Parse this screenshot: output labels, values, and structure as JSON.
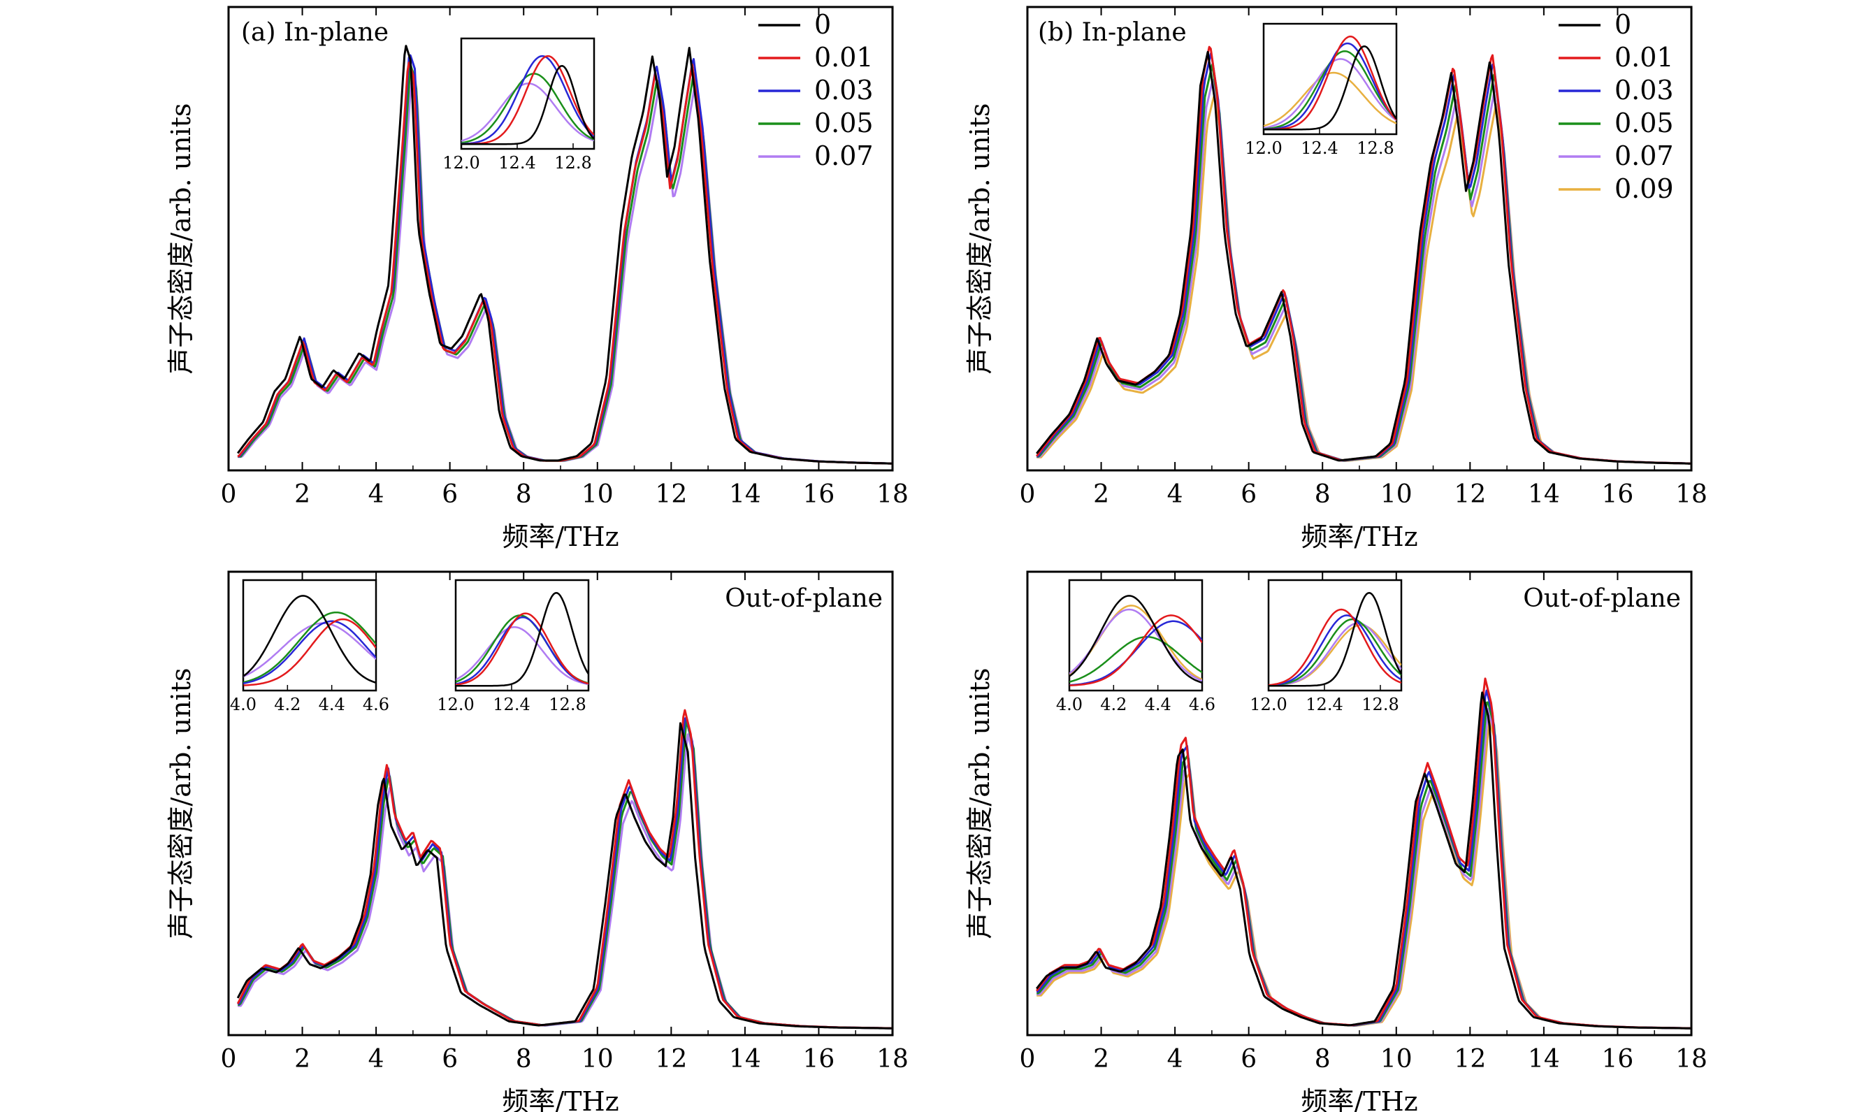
{
  "series_colors": {
    "0": "#000000",
    "0.01": "#e31a1c",
    "0.03": "#2727d6",
    "0.05": "#1a8f1a",
    "0.07": "#b07cf2",
    "0.09": "#e8b040"
  },
  "chart_data": [
    {
      "panel": "a",
      "type": "line",
      "title": "(a) In-plane",
      "xlabel": "频率/THz",
      "ylabel": "声子态密度/arb. units",
      "xlim": [
        0,
        18
      ],
      "xticks": [
        "0",
        "2",
        "4",
        "6",
        "8",
        "10",
        "12",
        "14",
        "16",
        "18"
      ],
      "legend": {
        "position": "top-right",
        "entries": [
          "0",
          "0.01",
          "0.03",
          "0.05",
          "0.07"
        ]
      },
      "base_curve": [
        [
          0.25,
          0.02
        ],
        [
          0.6,
          0.06
        ],
        [
          1.0,
          0.1
        ],
        [
          1.3,
          0.17
        ],
        [
          1.6,
          0.2
        ],
        [
          2.0,
          0.3
        ],
        [
          2.3,
          0.2
        ],
        [
          2.6,
          0.18
        ],
        [
          2.9,
          0.22
        ],
        [
          3.2,
          0.2
        ],
        [
          3.6,
          0.26
        ],
        [
          3.9,
          0.24
        ],
        [
          4.1,
          0.32
        ],
        [
          4.4,
          0.42
        ],
        [
          4.7,
          0.78
        ],
        [
          4.85,
          0.98
        ],
        [
          5.0,
          0.94
        ],
        [
          5.2,
          0.55
        ],
        [
          5.5,
          0.4
        ],
        [
          5.8,
          0.28
        ],
        [
          6.1,
          0.27
        ],
        [
          6.4,
          0.3
        ],
        [
          6.7,
          0.36
        ],
        [
          6.9,
          0.4
        ],
        [
          7.1,
          0.34
        ],
        [
          7.4,
          0.12
        ],
        [
          7.7,
          0.04
        ],
        [
          8.0,
          0.02
        ],
        [
          8.5,
          0.01
        ],
        [
          9.0,
          0.01
        ],
        [
          9.5,
          0.02
        ],
        [
          9.9,
          0.05
        ],
        [
          10.3,
          0.2
        ],
        [
          10.7,
          0.56
        ],
        [
          11.0,
          0.72
        ],
        [
          11.3,
          0.82
        ],
        [
          11.55,
          0.95
        ],
        [
          11.75,
          0.85
        ],
        [
          11.95,
          0.67
        ],
        [
          12.15,
          0.74
        ],
        [
          12.35,
          0.86
        ],
        [
          12.55,
          0.97
        ],
        [
          12.8,
          0.8
        ],
        [
          13.1,
          0.48
        ],
        [
          13.5,
          0.18
        ],
        [
          13.8,
          0.06
        ],
        [
          14.2,
          0.03
        ],
        [
          15.0,
          0.015
        ],
        [
          16.0,
          0.008
        ],
        [
          17.0,
          0.005
        ],
        [
          18.0,
          0.003
        ]
      ],
      "shifts": {
        "0": -0.06,
        "0.01": 0.02,
        "0.03": 0.05,
        "0.05": 0.08,
        "0.07": 0.11
      },
      "scales": {
        "0": 1.0,
        "0.01": 0.96,
        "0.03": 0.98,
        "0.05": 0.95,
        "0.07": 0.92
      },
      "insets": [
        {
          "xticks": [
            "12.0",
            "12.4",
            "12.8"
          ],
          "xlim": [
            12.0,
            12.95
          ],
          "peaks": {
            "0": [
              12.72,
              0.8,
              0.14
            ],
            "0.01": [
              12.62,
              0.9,
              0.22
            ],
            "0.03": [
              12.58,
              0.9,
              0.24
            ],
            "0.05": [
              12.52,
              0.72,
              0.26
            ],
            "0.07": [
              12.48,
              0.62,
              0.28
            ]
          }
        }
      ]
    },
    {
      "panel": "b",
      "type": "line",
      "title": "(b) In-plane",
      "xlabel": "频率/THz",
      "ylabel": "声子态密度/arb. units",
      "xlim": [
        0,
        18
      ],
      "xticks": [
        "0",
        "2",
        "4",
        "6",
        "8",
        "10",
        "12",
        "14",
        "16",
        "18"
      ],
      "legend": {
        "position": "top-right",
        "entries": [
          "0",
          "0.01",
          "0.03",
          "0.05",
          "0.07",
          "0.09"
        ]
      },
      "base_curve": [
        [
          0.25,
          0.02
        ],
        [
          0.7,
          0.07
        ],
        [
          1.2,
          0.12
        ],
        [
          1.6,
          0.2
        ],
        [
          1.95,
          0.3
        ],
        [
          2.2,
          0.24
        ],
        [
          2.5,
          0.2
        ],
        [
          3.0,
          0.19
        ],
        [
          3.5,
          0.22
        ],
        [
          3.9,
          0.26
        ],
        [
          4.2,
          0.36
        ],
        [
          4.5,
          0.56
        ],
        [
          4.75,
          0.9
        ],
        [
          4.95,
          0.98
        ],
        [
          5.15,
          0.86
        ],
        [
          5.4,
          0.55
        ],
        [
          5.7,
          0.36
        ],
        [
          6.0,
          0.28
        ],
        [
          6.4,
          0.3
        ],
        [
          6.7,
          0.36
        ],
        [
          6.95,
          0.41
        ],
        [
          7.2,
          0.3
        ],
        [
          7.5,
          0.1
        ],
        [
          7.8,
          0.03
        ],
        [
          8.5,
          0.01
        ],
        [
          9.5,
          0.02
        ],
        [
          9.9,
          0.05
        ],
        [
          10.3,
          0.2
        ],
        [
          10.7,
          0.55
        ],
        [
          11.0,
          0.72
        ],
        [
          11.3,
          0.82
        ],
        [
          11.55,
          0.93
        ],
        [
          11.75,
          0.8
        ],
        [
          11.95,
          0.65
        ],
        [
          12.15,
          0.72
        ],
        [
          12.4,
          0.86
        ],
        [
          12.6,
          0.96
        ],
        [
          12.85,
          0.78
        ],
        [
          13.1,
          0.48
        ],
        [
          13.5,
          0.18
        ],
        [
          13.8,
          0.06
        ],
        [
          14.2,
          0.03
        ],
        [
          15.0,
          0.015
        ],
        [
          16.0,
          0.008
        ],
        [
          17.0,
          0.005
        ],
        [
          18.0,
          0.003
        ]
      ],
      "shifts": {
        "0": -0.06,
        "0.01": 0.0,
        "0.03": 0.03,
        "0.05": 0.06,
        "0.07": 0.09,
        "0.09": 0.12
      },
      "scales": {
        "0": 0.98,
        "0.01": 1.0,
        "0.03": 0.98,
        "0.05": 0.95,
        "0.07": 0.92,
        "0.09": 0.88
      },
      "insets": [
        {
          "xticks": [
            "12.0",
            "12.4",
            "12.8"
          ],
          "xlim": [
            12.0,
            12.95
          ],
          "peaks": {
            "0": [
              12.72,
              0.85,
              0.16
            ],
            "0.01": [
              12.62,
              0.95,
              0.22
            ],
            "0.03": [
              12.6,
              0.88,
              0.24
            ],
            "0.05": [
              12.58,
              0.8,
              0.26
            ],
            "0.07": [
              12.55,
              0.72,
              0.28
            ],
            "0.09": [
              12.5,
              0.58,
              0.3
            ]
          }
        }
      ]
    },
    {
      "panel": "c",
      "type": "line",
      "title": "Out-of-plane",
      "xlabel": "频率/THz",
      "ylabel": "声子态密度/arb. units",
      "xlim": [
        0,
        18
      ],
      "xticks": [
        "0",
        "2",
        "4",
        "6",
        "8",
        "10",
        "12",
        "14",
        "16",
        "18"
      ],
      "base_curve": [
        [
          0.25,
          0.06
        ],
        [
          0.6,
          0.12
        ],
        [
          1.0,
          0.15
        ],
        [
          1.4,
          0.14
        ],
        [
          1.7,
          0.16
        ],
        [
          2.0,
          0.2
        ],
        [
          2.3,
          0.16
        ],
        [
          2.6,
          0.15
        ],
        [
          3.0,
          0.17
        ],
        [
          3.4,
          0.2
        ],
        [
          3.7,
          0.27
        ],
        [
          3.95,
          0.38
        ],
        [
          4.15,
          0.55
        ],
        [
          4.3,
          0.62
        ],
        [
          4.5,
          0.5
        ],
        [
          4.8,
          0.44
        ],
        [
          5.0,
          0.46
        ],
        [
          5.2,
          0.4
        ],
        [
          5.5,
          0.44
        ],
        [
          5.75,
          0.42
        ],
        [
          6.0,
          0.2
        ],
        [
          6.4,
          0.09
        ],
        [
          6.9,
          0.06
        ],
        [
          7.3,
          0.04
        ],
        [
          7.7,
          0.02
        ],
        [
          8.5,
          0.01
        ],
        [
          9.5,
          0.02
        ],
        [
          10.0,
          0.1
        ],
        [
          10.3,
          0.3
        ],
        [
          10.6,
          0.52
        ],
        [
          10.85,
          0.58
        ],
        [
          11.1,
          0.52
        ],
        [
          11.4,
          0.46
        ],
        [
          11.7,
          0.42
        ],
        [
          11.95,
          0.4
        ],
        [
          12.15,
          0.52
        ],
        [
          12.35,
          0.75
        ],
        [
          12.55,
          0.68
        ],
        [
          12.75,
          0.42
        ],
        [
          13.0,
          0.2
        ],
        [
          13.4,
          0.07
        ],
        [
          13.8,
          0.03
        ],
        [
          14.5,
          0.015
        ],
        [
          15.5,
          0.008
        ],
        [
          16.5,
          0.005
        ],
        [
          18.0,
          0.003
        ]
      ],
      "shifts": {
        "0": -0.1,
        "0.01": 0.0,
        "0.03": 0.03,
        "0.05": 0.06,
        "0.07": 0.09
      },
      "scales": {
        "0": 0.95,
        "0.01": 1.0,
        "0.03": 0.98,
        "0.05": 0.96,
        "0.07": 0.92
      },
      "insets": [
        {
          "xticks": [
            "4.0",
            "4.2",
            "4.4",
            "4.6"
          ],
          "xlim": [
            4.0,
            4.6
          ],
          "peaks": {
            "0": [
              4.27,
              0.92,
              0.18
            ],
            "0.01": [
              4.45,
              0.68,
              0.2
            ],
            "0.03": [
              4.4,
              0.66,
              0.22
            ],
            "0.05": [
              4.42,
              0.75,
              0.24
            ],
            "0.07": [
              4.36,
              0.64,
              0.26
            ]
          }
        },
        {
          "xticks": [
            "12.0",
            "12.4",
            "12.8"
          ],
          "xlim": [
            12.0,
            12.95
          ],
          "peaks": {
            "0": [
              12.72,
              0.95,
              0.16
            ],
            "0.01": [
              12.5,
              0.74,
              0.24
            ],
            "0.03": [
              12.48,
              0.7,
              0.25
            ],
            "0.05": [
              12.46,
              0.72,
              0.27
            ],
            "0.07": [
              12.42,
              0.6,
              0.28
            ]
          }
        }
      ]
    },
    {
      "panel": "d",
      "type": "line",
      "title": "Out-of-plane",
      "xlabel": "频率/THz",
      "ylabel": "声子态密度/arb. units",
      "xlim": [
        0,
        18
      ],
      "xticks": [
        "0",
        "2",
        "4",
        "6",
        "8",
        "10",
        "12",
        "14",
        "16",
        "18"
      ],
      "base_curve": [
        [
          0.25,
          0.09
        ],
        [
          0.6,
          0.13
        ],
        [
          1.0,
          0.15
        ],
        [
          1.4,
          0.15
        ],
        [
          1.7,
          0.16
        ],
        [
          1.95,
          0.19
        ],
        [
          2.2,
          0.15
        ],
        [
          2.6,
          0.14
        ],
        [
          3.0,
          0.16
        ],
        [
          3.4,
          0.2
        ],
        [
          3.7,
          0.3
        ],
        [
          3.95,
          0.48
        ],
        [
          4.15,
          0.66
        ],
        [
          4.3,
          0.68
        ],
        [
          4.5,
          0.5
        ],
        [
          4.8,
          0.44
        ],
        [
          5.1,
          0.4
        ],
        [
          5.35,
          0.37
        ],
        [
          5.6,
          0.42
        ],
        [
          5.85,
          0.34
        ],
        [
          6.1,
          0.18
        ],
        [
          6.5,
          0.08
        ],
        [
          7.0,
          0.05
        ],
        [
          7.5,
          0.03
        ],
        [
          8.0,
          0.015
        ],
        [
          8.8,
          0.01
        ],
        [
          9.5,
          0.02
        ],
        [
          10.0,
          0.1
        ],
        [
          10.3,
          0.3
        ],
        [
          10.6,
          0.55
        ],
        [
          10.85,
          0.62
        ],
        [
          11.1,
          0.56
        ],
        [
          11.4,
          0.48
        ],
        [
          11.7,
          0.4
        ],
        [
          11.95,
          0.38
        ],
        [
          12.15,
          0.55
        ],
        [
          12.4,
          0.82
        ],
        [
          12.6,
          0.75
        ],
        [
          12.8,
          0.45
        ],
        [
          13.0,
          0.2
        ],
        [
          13.4,
          0.07
        ],
        [
          13.8,
          0.03
        ],
        [
          14.5,
          0.015
        ],
        [
          15.5,
          0.008
        ],
        [
          16.5,
          0.005
        ],
        [
          18.0,
          0.003
        ]
      ],
      "shifts": {
        "0": -0.08,
        "0.01": 0.0,
        "0.03": 0.03,
        "0.05": 0.06,
        "0.07": 0.09,
        "0.09": 0.12
      },
      "scales": {
        "0": 0.96,
        "0.01": 1.0,
        "0.03": 0.97,
        "0.05": 0.94,
        "0.07": 0.91,
        "0.09": 0.88
      },
      "insets": [
        {
          "xticks": [
            "4.0",
            "4.2",
            "4.4",
            "4.6"
          ],
          "xlim": [
            4.0,
            4.6
          ],
          "peaks": {
            "0": [
              4.27,
              0.92,
              0.18
            ],
            "0.01": [
              4.46,
              0.72,
              0.2
            ],
            "0.03": [
              4.47,
              0.66,
              0.22
            ],
            "0.05": [
              4.35,
              0.5,
              0.22
            ],
            "0.07": [
              4.27,
              0.78,
              0.2
            ],
            "0.09": [
              4.28,
              0.82,
              0.2
            ]
          }
        },
        {
          "xticks": [
            "12.0",
            "12.4",
            "12.8"
          ],
          "xlim": [
            12.0,
            12.95
          ],
          "peaks": {
            "0": [
              12.72,
              0.95,
              0.16
            ],
            "0.01": [
              12.52,
              0.78,
              0.24
            ],
            "0.03": [
              12.56,
              0.72,
              0.25
            ],
            "0.05": [
              12.6,
              0.68,
              0.26
            ],
            "0.07": [
              12.64,
              0.64,
              0.27
            ],
            "0.09": [
              12.66,
              0.62,
              0.28
            ]
          }
        }
      ]
    }
  ]
}
